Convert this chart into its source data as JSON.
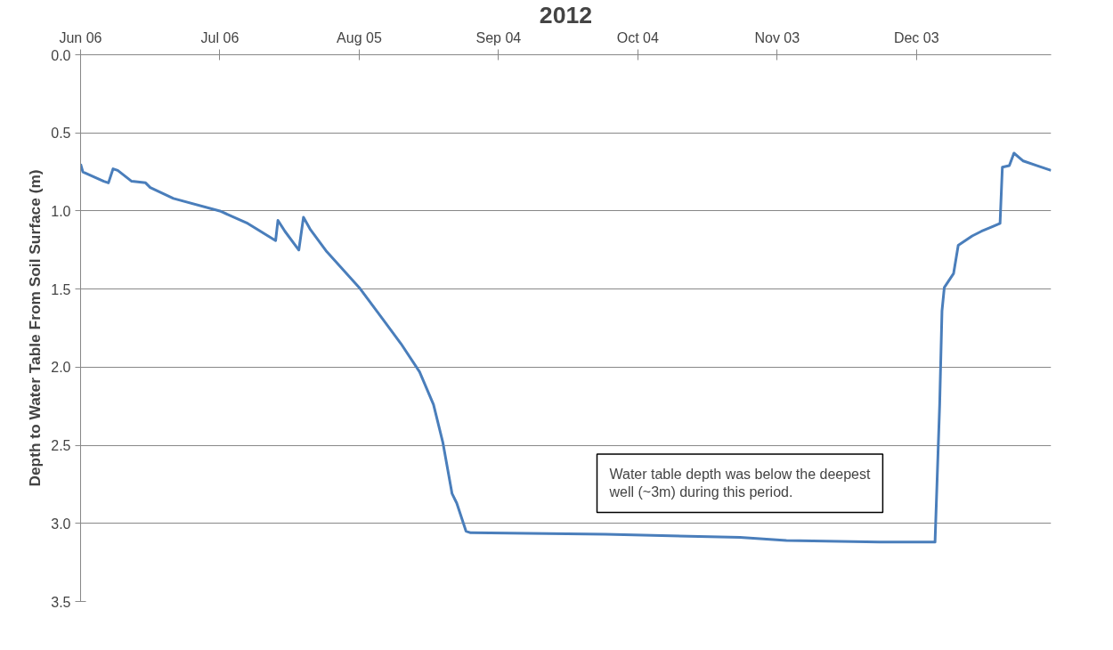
{
  "chart_data": {
    "type": "line",
    "title": "2012",
    "ylabel": "Depth to Water Table From Soil Surface (m)",
    "x": [
      "2012-06-06",
      "2012-06-06T12:00",
      "2012-06-11",
      "2012-06-12",
      "2012-06-13",
      "2012-06-14",
      "2012-06-17",
      "2012-06-20",
      "2012-06-21",
      "2012-06-26",
      "2012-07-06",
      "2012-07-12",
      "2012-07-18",
      "2012-07-18T12:00",
      "2012-07-20",
      "2012-07-23",
      "2012-07-24",
      "2012-07-25T12:00",
      "2012-07-29",
      "2012-08-05",
      "2012-08-10",
      "2012-08-14",
      "2012-08-18",
      "2012-08-21",
      "2012-08-23",
      "2012-08-25",
      "2012-08-26",
      "2012-08-28",
      "2012-08-29",
      "2012-09-27",
      "2012-10-26",
      "2012-11-05",
      "2012-11-25",
      "2012-12-07",
      "2012-12-08",
      "2012-12-08T12:00",
      "2012-12-09",
      "2012-12-11",
      "2012-12-12",
      "2012-12-15",
      "2012-12-17",
      "2012-12-21",
      "2012-12-21T12:00",
      "2012-12-23",
      "2012-12-24",
      "2012-12-26",
      "2012-12-29",
      "2013-01-01"
    ],
    "series": [
      {
        "color": "#4a7ebb",
        "values": [
          0.7,
          0.75,
          0.81,
          0.82,
          0.73,
          0.74,
          0.81,
          0.82,
          0.85,
          0.92,
          1.0,
          1.08,
          1.19,
          1.06,
          1.13,
          1.25,
          1.04,
          1.12,
          1.26,
          1.49,
          1.69,
          1.85,
          2.03,
          2.24,
          2.48,
          2.81,
          2.87,
          3.05,
          3.06,
          3.07,
          3.09,
          3.11,
          3.12,
          3.12,
          2.24,
          1.64,
          1.49,
          1.4,
          1.22,
          1.16,
          1.13,
          1.08,
          0.72,
          0.71,
          0.63,
          0.68,
          0.71,
          0.74
        ]
      }
    ],
    "xlim": [
      "2012-06-06",
      "2013-01-01"
    ],
    "xticks": [
      {
        "value": "2012-06-06",
        "label": "Jun 06"
      },
      {
        "value": "2012-07-06",
        "label": "Jul 06"
      },
      {
        "value": "2012-08-05",
        "label": "Aug 05"
      },
      {
        "value": "2012-09-04",
        "label": "Sep 04"
      },
      {
        "value": "2012-10-04",
        "label": "Oct 04"
      },
      {
        "value": "2012-11-03",
        "label": "Nov 03"
      },
      {
        "value": "2012-12-03",
        "label": "Dec 03"
      }
    ],
    "ylim": [
      3.5,
      0.0
    ],
    "yticks": [
      {
        "value": 0,
        "label": "0.0"
      },
      0.5,
      {
        "value": 1,
        "label": "1.0"
      },
      1.5,
      {
        "value": 2,
        "label": "2.0"
      },
      2.5,
      {
        "value": 3,
        "label": "3.0"
      },
      3.5
    ],
    "grid": "y",
    "marker": "none",
    "line_style": "solid",
    "annotations": [
      "Water table depth was below the deepest well (~3m) during this period."
    ]
  }
}
